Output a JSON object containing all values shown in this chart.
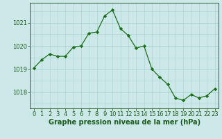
{
  "x": [
    0,
    1,
    2,
    3,
    4,
    5,
    6,
    7,
    8,
    9,
    10,
    11,
    12,
    13,
    14,
    15,
    16,
    17,
    18,
    19,
    20,
    21,
    22,
    23
  ],
  "y": [
    1019.05,
    1019.4,
    1019.65,
    1019.55,
    1019.55,
    1019.95,
    1020.0,
    1020.55,
    1020.6,
    1021.3,
    1021.55,
    1020.75,
    1020.45,
    1019.9,
    1020.0,
    1019.0,
    1018.65,
    1018.35,
    1017.75,
    1017.65,
    1017.9,
    1017.75,
    1017.85,
    1018.15
  ],
  "xlim": [
    -0.5,
    23.5
  ],
  "ylim": [
    1017.3,
    1021.85
  ],
  "yticks": [
    1018,
    1019,
    1020,
    1021
  ],
  "xticks": [
    0,
    1,
    2,
    3,
    4,
    5,
    6,
    7,
    8,
    9,
    10,
    11,
    12,
    13,
    14,
    15,
    16,
    17,
    18,
    19,
    20,
    21,
    22,
    23
  ],
  "line_color": "#1a6e1a",
  "marker_color": "#1a6e1a",
  "bg_color": "#cce8e8",
  "grid_color_minor": "#aacfcf",
  "grid_color_major": "#aacfcf",
  "axis_color": "#2a5a2a",
  "tick_label_color": "#1a5a1a",
  "xlabel": "Graphe pression niveau de la mer (hPa)",
  "xlabel_color": "#1a5a1a",
  "xlabel_fontsize": 7,
  "tick_fontsize": 6,
  "figsize": [
    3.2,
    2.0
  ],
  "dpi": 100
}
